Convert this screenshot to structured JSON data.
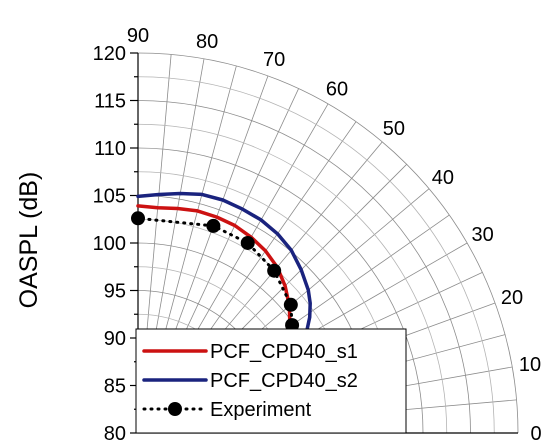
{
  "chart_data": {
    "type": "line",
    "coordinate_system": "polar-quarter",
    "ylabel": "OASPL (dB)",
    "radial_range": [
      80,
      120
    ],
    "radial_ticks": [
      80,
      85,
      90,
      95,
      100,
      105,
      110,
      115,
      120
    ],
    "radial_tick_labels": [
      "80",
      "85",
      "90",
      "95",
      "100",
      "105",
      "110",
      "115",
      "120"
    ],
    "angle_range": [
      0,
      90
    ],
    "angle_ticks": [
      0,
      10,
      20,
      30,
      40,
      50,
      60,
      70,
      80,
      90
    ],
    "angle_tick_labels": [
      "0",
      "10",
      "20",
      "30",
      "40",
      "50",
      "60",
      "70",
      "80",
      "90"
    ],
    "grid": true,
    "legend_position": "bottom-left",
    "series": [
      {
        "name": "PCF_CPD40_s1",
        "color": "#cc1111",
        "style": "solid",
        "angles": [
          12.3,
          15,
          17,
          19,
          21,
          23,
          25,
          27,
          29,
          31,
          34,
          37,
          40,
          45,
          50,
          55,
          60,
          65,
          70,
          75,
          80,
          85,
          90
        ],
        "values": [
          89.8,
          93.1,
          95.1,
          96.2,
          96.8,
          97.1,
          97.3,
          97.6,
          98.0,
          98.4,
          99.3,
          100.0,
          100.8,
          101.9,
          102.8,
          103.4,
          103.8,
          104.1,
          104.2,
          104.2,
          104.0,
          103.8,
          103.9
        ]
      },
      {
        "name": "PCF_CPD40_s2",
        "color": "#1a237e",
        "style": "solid",
        "angles": [
          12.3,
          15,
          17,
          19,
          21,
          23,
          25,
          27,
          29,
          31,
          34,
          37,
          40,
          45,
          50,
          55,
          60,
          65,
          70,
          75,
          80,
          85,
          90
        ],
        "values": [
          90.5,
          93.8,
          95.8,
          97.0,
          97.8,
          98.5,
          99.0,
          99.5,
          100.1,
          100.7,
          101.8,
          102.7,
          103.4,
          104.3,
          105.1,
          105.6,
          105.9,
          106.0,
          106.1,
          106.0,
          105.6,
          105.2,
          104.9
        ]
      },
      {
        "name": "Experiment",
        "color": "#000000",
        "style": "dotted",
        "marker": "circle",
        "angles": [
          12.3,
          15,
          20,
          25,
          30,
          35,
          40,
          50,
          60,
          70,
          90
        ],
        "values": [
          88.6,
          91.8,
          95.6,
          97.6,
          99.1,
          99.8,
          101.0,
          102.3,
          103.1,
          103.2,
          102.6
        ]
      }
    ]
  }
}
